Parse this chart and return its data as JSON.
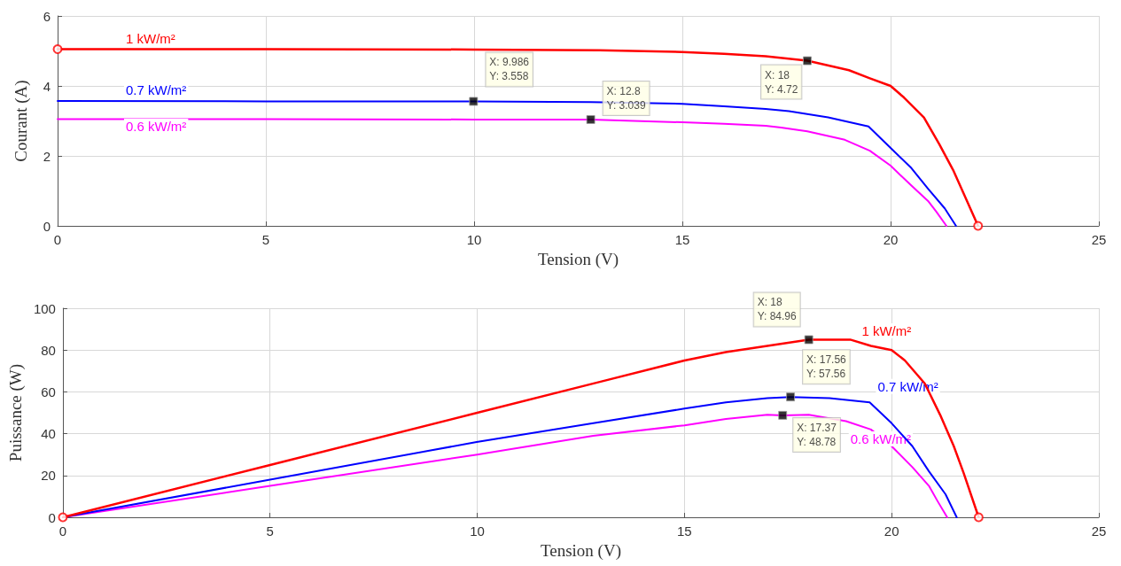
{
  "chart_data": [
    {
      "type": "line",
      "xlabel": "Tension (V)",
      "ylabel": "Courant (A)",
      "xlim": [
        0,
        25
      ],
      "xticks": [
        0,
        5,
        10,
        15,
        20,
        25
      ],
      "ylim": [
        0,
        6
      ],
      "yticks": [
        0,
        2,
        4,
        6
      ],
      "grid": true,
      "legend": false,
      "line_style": "solid",
      "marker": "none",
      "series": [
        {
          "name": "1 kW/m²",
          "color": "#ff0000",
          "x": [
            0,
            5,
            10,
            13,
            15,
            16,
            17,
            18,
            19,
            19.5,
            20,
            20.32,
            20.8,
            21.17,
            21.5,
            21.74,
            22.1
          ],
          "values": [
            5.05,
            5.05,
            5.04,
            5.02,
            4.97,
            4.92,
            4.85,
            4.72,
            4.45,
            4.22,
            4.0,
            3.67,
            3.1,
            2.33,
            1.6,
            0.96,
            0
          ]
        },
        {
          "name": "0.7 kW/m²",
          "color": "#0000ff",
          "x": [
            0,
            5,
            9.986,
            12.8,
            15,
            16,
            17,
            17.56,
            18.5,
            19.47,
            20,
            20.5,
            20.9,
            21.3,
            21.57
          ],
          "values": [
            3.57,
            3.56,
            3.558,
            3.54,
            3.49,
            3.42,
            3.34,
            3.28,
            3.1,
            2.84,
            2.23,
            1.65,
            1.06,
            0.5,
            0
          ]
        },
        {
          "name": "0.6 kW/m²",
          "color": "#ff00ff",
          "x": [
            0,
            5,
            10,
            12.8,
            15,
            16,
            17,
            17.37,
            18,
            18.9,
            19.5,
            20,
            20.5,
            20.9,
            21.1,
            21.34
          ],
          "values": [
            3.05,
            3.05,
            3.04,
            3.039,
            2.96,
            2.92,
            2.86,
            2.81,
            2.7,
            2.46,
            2.15,
            1.72,
            1.15,
            0.71,
            0.4,
            0
          ]
        },
        {
          "type": "scatter",
          "marker": "circle",
          "color": "#ff0000",
          "x": [
            0,
            22.1
          ],
          "values": [
            5.05,
            0
          ]
        }
      ],
      "annotations": [
        {
          "text": "X: 9.986\nY: 3.558",
          "x": 9.986,
          "y": 3.558
        },
        {
          "text": "X: 12.8\nY: 3.039",
          "x": 12.8,
          "y": 3.039
        },
        {
          "text": "X: 18\nY: 4.72",
          "x": 18,
          "y": 4.72
        }
      ]
    },
    {
      "type": "line",
      "xlabel": "Tension (V)",
      "ylabel": "Puissance (W)",
      "xlim": [
        0,
        25
      ],
      "xticks": [
        0,
        5,
        10,
        15,
        20,
        25
      ],
      "ylim": [
        0,
        100
      ],
      "yticks": [
        0,
        20,
        40,
        60,
        80,
        100
      ],
      "grid": true,
      "legend": false,
      "line_style": "solid",
      "marker": "none",
      "series": [
        {
          "name": "1 kW/m²",
          "color": "#ff0000",
          "x": [
            0,
            5,
            10,
            13,
            15,
            16,
            17,
            18,
            19,
            19.5,
            20,
            20.32,
            20.8,
            21.17,
            21.5,
            21.74,
            22.1
          ],
          "values": [
            0,
            25,
            50,
            65,
            75,
            79,
            82,
            84.96,
            85,
            82,
            80,
            75,
            64,
            49,
            34,
            21,
            0
          ]
        },
        {
          "name": "0.7 kW/m²",
          "color": "#0000ff",
          "x": [
            0,
            5,
            9.986,
            12.8,
            15,
            16,
            17,
            17.56,
            18.5,
            19.47,
            20,
            20.5,
            20.9,
            21.3,
            21.57
          ],
          "values": [
            0,
            18,
            36,
            45,
            52,
            55,
            57,
            57.56,
            57,
            55,
            45,
            34,
            22,
            11,
            0
          ]
        },
        {
          "name": "0.6 kW/m²",
          "color": "#ff00ff",
          "x": [
            0,
            5,
            10,
            12.8,
            15,
            16,
            17,
            17.37,
            18,
            18.9,
            19.5,
            20,
            20.5,
            20.9,
            21.1,
            21.34
          ],
          "values": [
            0,
            15,
            30,
            39,
            44,
            47,
            49,
            48.78,
            49,
            46,
            42,
            34,
            24,
            15,
            8,
            0
          ]
        },
        {
          "type": "scatter",
          "marker": "circle",
          "color": "#ff0000",
          "x": [
            0,
            22.1
          ],
          "values": [
            0,
            0
          ]
        }
      ],
      "annotations": [
        {
          "text": "X: 18\nY: 84.96",
          "x": 18,
          "y": 84.96
        },
        {
          "text": "X: 17.56\nY: 57.56",
          "x": 17.56,
          "y": 57.56
        },
        {
          "text": "X: 17.37\nY: 48.78",
          "x": 17.37,
          "y": 48.78
        }
      ]
    }
  ]
}
